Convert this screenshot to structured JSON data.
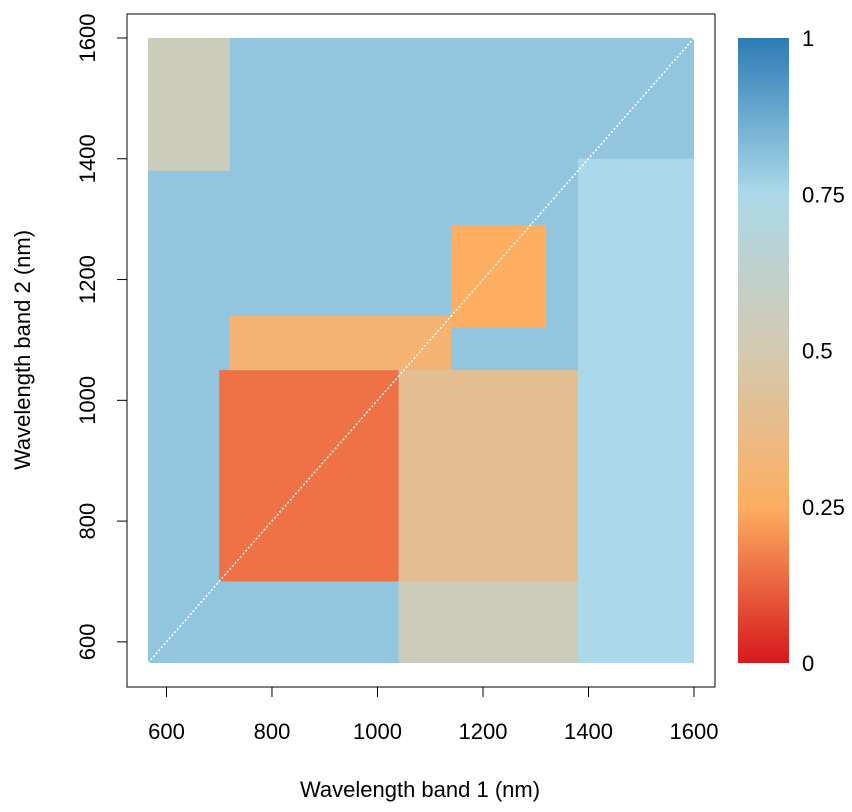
{
  "chart_data": {
    "type": "heatmap",
    "title": "",
    "xlabel": "Wavelength band 1 (nm)",
    "ylabel": "Wavelength band 2 (nm)",
    "xlim": [
      530,
      1630
    ],
    "ylim": [
      530,
      1640
    ],
    "data_extent": {
      "x": [
        565,
        1600
      ],
      "y": [
        565,
        1600
      ]
    },
    "x_ticks": [
      600,
      800,
      1000,
      1200,
      1400,
      1600
    ],
    "y_ticks": [
      600,
      800,
      1000,
      1200,
      1400,
      1600
    ],
    "colorbar": {
      "range": [
        0,
        1
      ],
      "ticks": [
        {
          "value": 0,
          "label": "0"
        },
        {
          "value": 0.25,
          "label": "0.25"
        },
        {
          "value": 0.5,
          "label": "0.5"
        },
        {
          "value": 0.75,
          "label": "0.75"
        },
        {
          "value": 1,
          "label": "1"
        }
      ],
      "colors": [
        "#d7191c",
        "#fdae61",
        "#d4c9b0",
        "#abd9e9",
        "#2c7bb6"
      ]
    },
    "grid": false,
    "legend": "colorbar right",
    "description_regions": [
      {
        "x": [
          565,
          1600
        ],
        "y": [
          565,
          1600
        ],
        "value": 0.8
      },
      {
        "x": [
          1040,
          1380
        ],
        "y": [
          700,
          1050
        ],
        "value": 0.4
      },
      {
        "x": [
          700,
          1040
        ],
        "y": [
          700,
          1050
        ],
        "value": 0.15
      },
      {
        "x": [
          1140,
          1320
        ],
        "y": [
          1120,
          1290
        ],
        "value": 0.25
      },
      {
        "x": [
          720,
          1140
        ],
        "y": [
          1050,
          1140
        ],
        "value": 0.3
      },
      {
        "x": [
          565,
          1600
        ],
        "y": [
          565,
          700
        ],
        "value": 0.8
      },
      {
        "x": [
          1040,
          1400
        ],
        "y": [
          565,
          700
        ],
        "value": 0.55
      },
      {
        "x": [
          1380,
          1600
        ],
        "y": [
          565,
          1400
        ],
        "value": 0.75
      },
      {
        "x": [
          565,
          720
        ],
        "y": [
          1380,
          1600
        ],
        "value": 0.55
      }
    ]
  }
}
